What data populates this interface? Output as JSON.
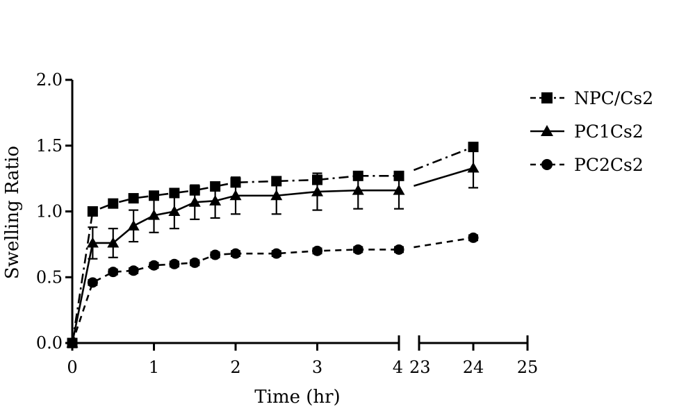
{
  "chart_data": {
    "type": "line",
    "xlabel": "Time (hr)",
    "ylabel": "Swelling Ratio",
    "ylim": [
      0,
      2.0
    ],
    "y_ticks": [
      "0.0",
      "0.5",
      "1.0",
      "1.5",
      "2.0"
    ],
    "x_segments": [
      {
        "range": [
          0,
          4
        ],
        "ticks": [
          "0",
          "1",
          "2",
          "3",
          "4"
        ]
      },
      {
        "range": [
          23,
          25
        ],
        "ticks": [
          "23",
          "24",
          "25"
        ]
      }
    ],
    "legend_position": "top-right",
    "series": [
      {
        "name": "NPC/Cs2",
        "marker": "square",
        "dash": "dash-dot",
        "x": [
          0,
          0.25,
          0.5,
          0.75,
          1.0,
          1.25,
          1.5,
          1.75,
          2.0,
          2.5,
          3.0,
          3.5,
          4.0,
          24
        ],
        "y": [
          0.0,
          1.0,
          1.06,
          1.1,
          1.12,
          1.14,
          1.16,
          1.19,
          1.22,
          1.23,
          1.24,
          1.27,
          1.27,
          1.49
        ],
        "err": [
          0,
          0.02,
          0.02,
          0.03,
          0.03,
          0.03,
          0.03,
          0.03,
          0.03,
          0.03,
          0.03,
          0.03,
          0.03,
          0.03
        ]
      },
      {
        "name": "PC1Cs2",
        "marker": "triangle",
        "dash": "solid",
        "x": [
          0,
          0.25,
          0.5,
          0.75,
          1.0,
          1.25,
          1.5,
          1.75,
          2.0,
          2.5,
          3.0,
          3.5,
          4.0,
          24
        ],
        "y": [
          0.0,
          0.76,
          0.76,
          0.89,
          0.97,
          1.0,
          1.07,
          1.08,
          1.12,
          1.12,
          1.15,
          1.16,
          1.16,
          1.33
        ],
        "err": [
          0,
          0.12,
          0.11,
          0.12,
          0.13,
          0.13,
          0.13,
          0.13,
          0.14,
          0.14,
          0.14,
          0.14,
          0.14,
          0.15
        ]
      },
      {
        "name": "PC2Cs2",
        "marker": "circle",
        "dash": "dashed",
        "x": [
          0,
          0.25,
          0.5,
          0.75,
          1.0,
          1.25,
          1.5,
          1.75,
          2.0,
          2.5,
          3.0,
          3.5,
          4.0,
          24
        ],
        "y": [
          0.0,
          0.46,
          0.54,
          0.55,
          0.59,
          0.6,
          0.61,
          0.67,
          0.68,
          0.68,
          0.7,
          0.71,
          0.71,
          0.8
        ],
        "err": [
          0,
          0.02,
          0.02,
          0.02,
          0.02,
          0.02,
          0.02,
          0.02,
          0.02,
          0.02,
          0.02,
          0.02,
          0.02,
          0.02
        ]
      }
    ]
  }
}
